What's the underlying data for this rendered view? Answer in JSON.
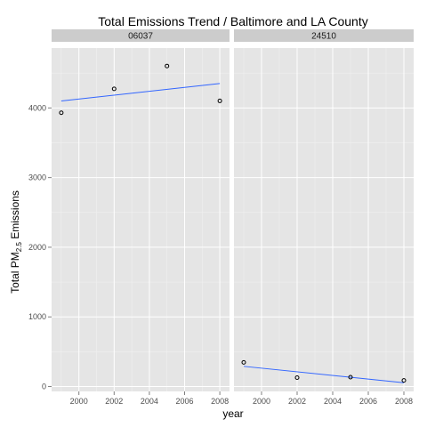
{
  "chart_data": {
    "type": "scatter",
    "title": "Total Emissions Trend / Baltimore and LA County",
    "xlabel": "year",
    "ylabel": {
      "main": "Total PM",
      "subscript": "2.5",
      "suffix": " Emissions"
    },
    "xlim": [
      1998.45,
      2008.55
    ],
    "ylim": [
      -70,
      4860
    ],
    "x_ticks": [
      2000,
      2002,
      2004,
      2006,
      2008
    ],
    "y_ticks": [
      0,
      1000,
      2000,
      3000,
      4000
    ],
    "grid": true,
    "facet_by": "fips",
    "panels": [
      {
        "strip": "06037",
        "points": [
          {
            "x": 1999,
            "y": 3931
          },
          {
            "x": 2002,
            "y": 4274
          },
          {
            "x": 2005,
            "y": 4602
          },
          {
            "x": 2008,
            "y": 4101
          }
        ],
        "trend": {
          "type": "linear",
          "from": {
            "x": 1999,
            "y": 4100
          },
          "to": {
            "x": 2008,
            "y": 4350
          }
        }
      },
      {
        "strip": "24510",
        "points": [
          {
            "x": 1999,
            "y": 347
          },
          {
            "x": 2002,
            "y": 128
          },
          {
            "x": 2005,
            "y": 134
          },
          {
            "x": 2008,
            "y": 88
          }
        ],
        "trend": {
          "type": "linear",
          "from": {
            "x": 1999,
            "y": 290
          },
          "to": {
            "x": 2008,
            "y": 55
          }
        }
      }
    ],
    "colors": {
      "panel_bg": "#e5e5e5",
      "strip_bg": "#cccccc",
      "grid_major": "#ffffff",
      "trend_line": "#3366ff",
      "point_stroke": "#000000"
    }
  }
}
